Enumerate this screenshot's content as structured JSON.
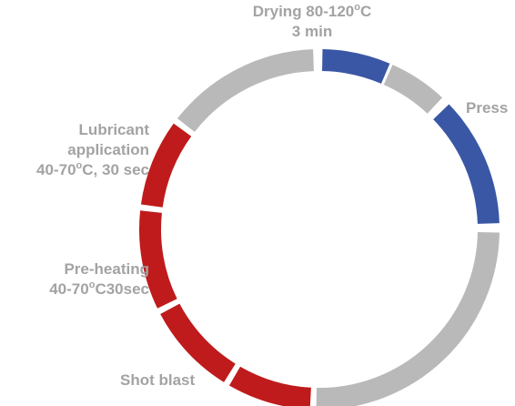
{
  "stages": [
    {
      "id": "drying",
      "lines": [
        {
          "pre": "Drying 80-120",
          "deg": "o",
          "post": "C"
        },
        {
          "pre": "3 min"
        }
      ]
    },
    {
      "id": "press",
      "lines": [
        {
          "pre": "Press"
        }
      ]
    },
    {
      "id": "lubricant",
      "lines": [
        {
          "pre": "Lubricant"
        },
        {
          "pre": "application"
        },
        {
          "pre": "40-70",
          "deg": "o",
          "post": "C, 30 sec"
        }
      ]
    },
    {
      "id": "preheating",
      "lines": [
        {
          "pre": "Pre-heating"
        },
        {
          "pre": "40-70",
          "deg": "o",
          "post": "C30sec"
        }
      ]
    },
    {
      "id": "shotblast",
      "lines": [
        {
          "pre": "Shot blast"
        }
      ]
    }
  ],
  "colors": {
    "blue": "#3a57a5",
    "gray": "#b9b9b9",
    "red": "#bf1b1c",
    "label": "#a3a3a3"
  },
  "ring_segments": [
    {
      "color": "blue",
      "name": "segment-press-blue"
    },
    {
      "color": "gray",
      "name": "segment-gray-1"
    },
    {
      "color": "blue",
      "name": "segment-press-blue-2"
    },
    {
      "color": "gray",
      "name": "segment-gray-2"
    },
    {
      "color": "red",
      "name": "segment-shot-blast-red"
    },
    {
      "color": "red",
      "name": "segment-pre-heating-red"
    },
    {
      "color": "red",
      "name": "segment-pre-heating-red-2"
    },
    {
      "color": "red",
      "name": "segment-lubricant-red"
    },
    {
      "color": "gray",
      "name": "segment-drying-gray"
    }
  ]
}
